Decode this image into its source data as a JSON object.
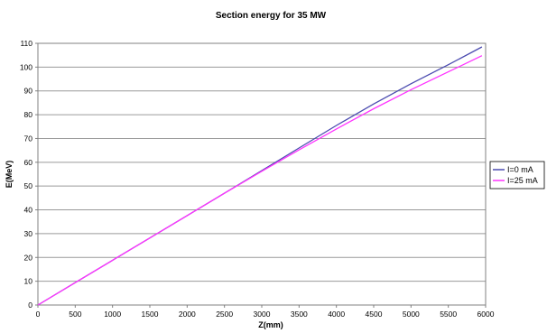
{
  "chart_data": {
    "type": "line",
    "title": "Section energy for 35 MW",
    "xlabel": "Z(mm)",
    "ylabel": "E(MeV)",
    "xlim": [
      0,
      6000
    ],
    "ylim": [
      0,
      110
    ],
    "x_ticks": [
      "0",
      "500",
      "1000",
      "1500",
      "2000",
      "2500",
      "3000",
      "3500",
      "4000",
      "4500",
      "5000",
      "5500",
      "6000"
    ],
    "y_ticks": [
      "0",
      "10",
      "20",
      "30",
      "40",
      "50",
      "60",
      "70",
      "80",
      "90",
      "100",
      "110"
    ],
    "grid": "horizontal",
    "legend_position": "right",
    "series": [
      {
        "name": "I=0 mA",
        "color": "#4b4bb0",
        "x": [
          0,
          500,
          1000,
          1500,
          2000,
          2500,
          3000,
          3500,
          4000,
          4500,
          5000,
          5500,
          5950
        ],
        "y": [
          0,
          9.4,
          18.8,
          28.2,
          37.6,
          47.0,
          56.5,
          66.0,
          75.5,
          84.5,
          93.0,
          101.0,
          108.5
        ]
      },
      {
        "name": "I=25 mA",
        "color": "#ff33ff",
        "x": [
          0,
          500,
          1000,
          1500,
          2000,
          2500,
          3000,
          3500,
          4000,
          4500,
          5000,
          5500,
          5950
        ],
        "y": [
          0,
          9.4,
          18.8,
          28.2,
          37.6,
          47.0,
          56.2,
          65.2,
          74.0,
          82.5,
          90.5,
          98.0,
          104.8
        ]
      }
    ]
  }
}
